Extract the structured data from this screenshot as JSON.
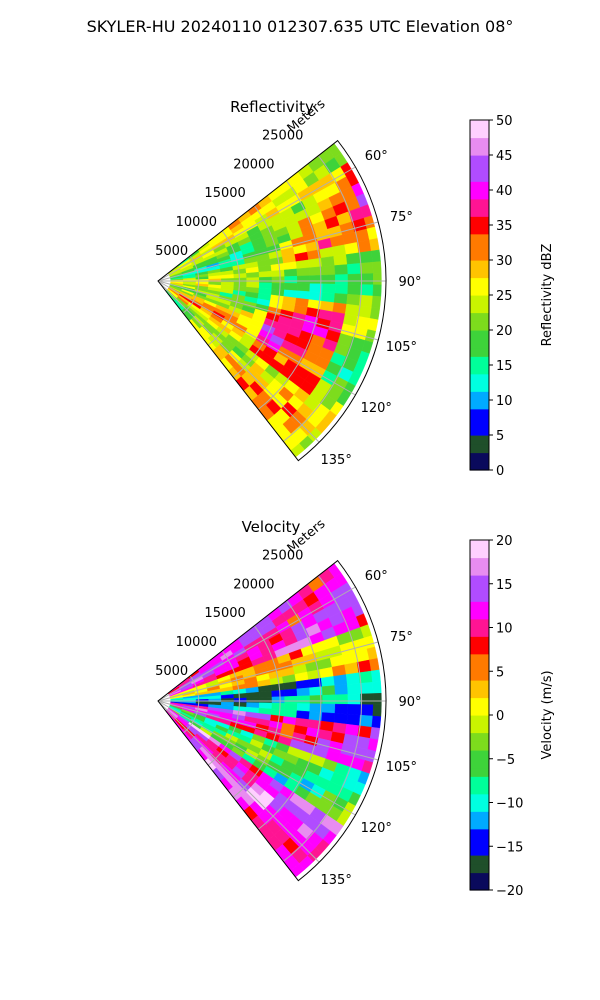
{
  "figure": {
    "suptitle": "SKYLER-HU  20240110  012307.635 UTC Elevation 08°"
  },
  "chart_data": [
    {
      "type": "heatmap",
      "projection": "polar-sector",
      "title": "Reflectivity",
      "radial_label": "Meters",
      "radial_ticks": [
        "5000",
        "10000",
        "15000",
        "20000",
        "25000"
      ],
      "radial_tick_values": [
        5000,
        10000,
        15000,
        20000,
        25000
      ],
      "rmax": 28000,
      "theta_range_deg": [
        52,
        142
      ],
      "theta_ticks": [
        "60°",
        "75°",
        "90°",
        "105°",
        "120°",
        "135°"
      ],
      "theta_tick_values": [
        60,
        75,
        90,
        105,
        120,
        135
      ],
      "grid": true,
      "colorbar": {
        "label": "Reflectivity dBZ",
        "vmin": 0,
        "vmax": 50,
        "ticks": [
          "0",
          "5",
          "10",
          "15",
          "20",
          "25",
          "30",
          "35",
          "40",
          "45",
          "50"
        ],
        "tick_values": [
          0,
          5,
          10,
          15,
          20,
          25,
          30,
          35,
          40,
          45,
          50
        ],
        "colormap": [
          "#0a0a5c",
          "#1f4f2a",
          "#0000ff",
          "#00aaff",
          "#00ffe0",
          "#00ff9a",
          "#3ed33a",
          "#7ddc1d",
          "#c9f400",
          "#ffff00",
          "#ffc400",
          "#ff7a00",
          "#ff0000",
          "#ff1493",
          "#ff00ff",
          "#b04cff",
          "#e88cf0",
          "#ffd0ff"
        ]
      },
      "field_summary": {
        "typical_range": [
          18,
          45
        ],
        "features": [
          "mostly 20–30 dBZ across the sector",
          "embedded 33–38 dBZ cells near 60°–80°",
          "band of 38–45 dBZ near 100°–125° at 15000–22000 m"
        ]
      }
    },
    {
      "type": "heatmap",
      "projection": "polar-sector",
      "title": "Velocity",
      "radial_label": "Meters",
      "radial_ticks": [
        "5000",
        "10000",
        "15000",
        "20000",
        "25000"
      ],
      "radial_tick_values": [
        5000,
        10000,
        15000,
        20000,
        25000
      ],
      "rmax": 28000,
      "theta_range_deg": [
        52,
        142
      ],
      "theta_ticks": [
        "60°",
        "75°",
        "90°",
        "105°",
        "120°",
        "135°"
      ],
      "theta_tick_values": [
        60,
        75,
        90,
        105,
        120,
        135
      ],
      "grid": true,
      "colorbar": {
        "label": "Velocity (m/s)",
        "vmin": -20,
        "vmax": 20,
        "ticks": [
          "−20",
          "−15",
          "−10",
          "−5",
          "0",
          "5",
          "10",
          "15",
          "20"
        ],
        "tick_values": [
          -20,
          -15,
          -10,
          -5,
          0,
          5,
          10,
          15,
          20
        ],
        "colormap": [
          "#0a0a5c",
          "#1f4f2a",
          "#0000ff",
          "#00aaff",
          "#00ffe0",
          "#00ff9a",
          "#3ed33a",
          "#7ddc1d",
          "#c9f400",
          "#ffff00",
          "#ffc400",
          "#ff7a00",
          "#ff0000",
          "#ff1493",
          "#ff00ff",
          "#b04cff",
          "#e88cf0",
          "#ffd0ff"
        ]
      },
      "field_summary": {
        "typical_range": [
          -15,
          18
        ],
        "features": [
          "positive 8–15 m/s near 55°–70°",
          "near-zero 0–5 m/s band near 70°–82°",
          "negative −10 to −14 m/s band near 85°–95°",
          "positive 10–14 m/s band near 95°–110°",
          "negative −5 to −8 m/s near 110°–125°",
          "positive 10–18 m/s near 125°–140°"
        ]
      }
    }
  ]
}
